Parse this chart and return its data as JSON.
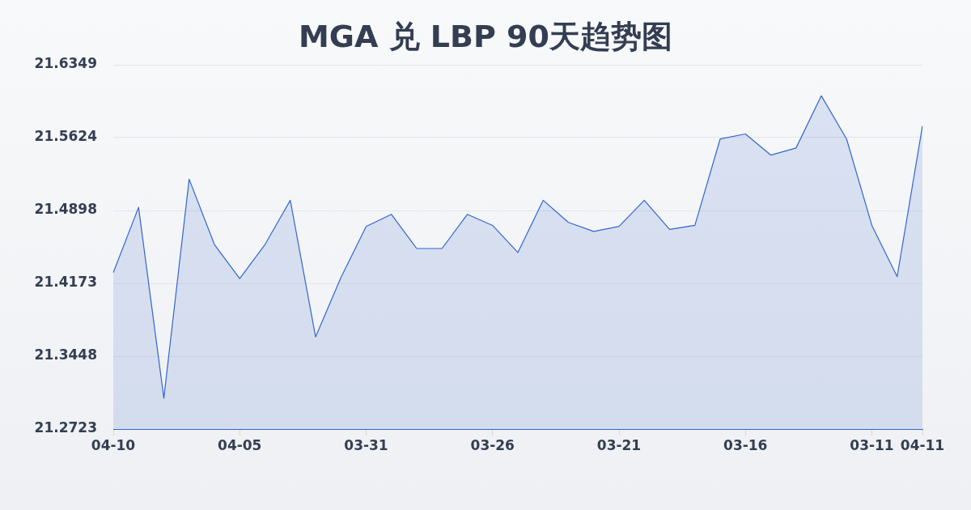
{
  "chart_data": {
    "type": "area",
    "title": "MGA 兑 LBP 90天趋势图",
    "categories": [
      "04-10",
      null,
      null,
      null,
      null,
      "04-05",
      null,
      null,
      null,
      null,
      "03-31",
      null,
      null,
      null,
      null,
      "03-26",
      null,
      null,
      null,
      null,
      "03-21",
      null,
      null,
      null,
      null,
      "03-16",
      null,
      null,
      null,
      null,
      "03-11",
      null,
      "04-11"
    ],
    "color": "#3366cc",
    "values": [
      21.428,
      21.493,
      21.303,
      21.521,
      21.456,
      21.422,
      21.456,
      21.5,
      21.364,
      21.423,
      21.474,
      21.486,
      21.452,
      21.452,
      21.486,
      21.475,
      21.448,
      21.5,
      21.478,
      21.469,
      21.474,
      21.5,
      21.471,
      21.475,
      21.561,
      21.566,
      21.545,
      21.552,
      21.604,
      21.561,
      21.475,
      21.424,
      21.574
    ],
    "ylim": [
      21.2723,
      21.6349
    ],
    "yticks": [
      21.2723,
      21.3448,
      21.4173,
      21.4898,
      21.5624,
      21.6349
    ],
    "grid": "y"
  }
}
